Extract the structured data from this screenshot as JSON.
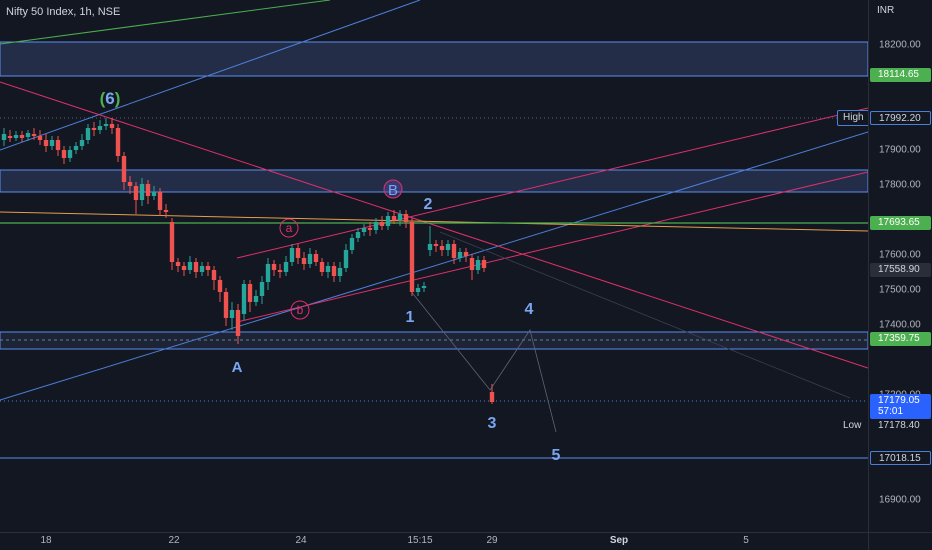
{
  "header": {
    "title": "Nifty 50 Index, 1h, NSE"
  },
  "price_axis": {
    "currency": "INR",
    "ticks": [
      "18200.00",
      "17900.00",
      "17800.00",
      "17600.00",
      "17500.00",
      "17400.00",
      "17200.00",
      "16900.00"
    ],
    "labels": {
      "zone_top": "18114.65",
      "high": "17992.20",
      "green_line": "17693.65",
      "last_close": "17558.90",
      "zone_low": "17359.75",
      "current": "17179.05",
      "countdown": "57:01",
      "low": "17178.40",
      "base": "17018.15"
    },
    "tags": {
      "high": "High",
      "low": "Low"
    }
  },
  "time_axis": {
    "ticks": [
      "18",
      "22",
      "24",
      "15:15",
      "29",
      "Sep",
      "5"
    ]
  },
  "waves": {
    "w6": "6",
    "B": "B",
    "a": "a",
    "b": "b",
    "A": "A",
    "w1": "1",
    "w2": "2",
    "w3": "3",
    "w4": "4",
    "w5": "5"
  },
  "colors": {
    "background": "#131722",
    "up": "#26a69a",
    "down": "#ef5350",
    "zone": "#2a3655",
    "blue_line": "#4c7fd9",
    "pink_line": "#e0306a",
    "green_line": "#4caf50",
    "orange_line": "#e3a04a",
    "wave_label": "#7aa6f0"
  }
}
